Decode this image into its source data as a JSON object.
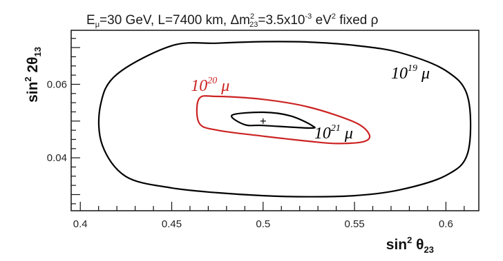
{
  "chart_data": {
    "type": "line",
    "title": {
      "e_main": "E",
      "e_sub": "μ",
      "part1": "=30 GeV, L=7400 km, Δm",
      "dm_sup": "2",
      "dm_sub": "23",
      "part2": "=3.5x10",
      "exp": "-3",
      "part3": " eV",
      "ev_sup": "2",
      "part4": " fixed ρ"
    },
    "xlabel": {
      "main": "sin",
      "sup": "2",
      "theta": " θ",
      "sub": "23"
    },
    "ylabel": {
      "main": "sin",
      "sup": "2",
      "theta": " 2θ",
      "sub": "13"
    },
    "xlim": [
      0.395,
      0.618
    ],
    "ylim": [
      0.0256,
      0.0747
    ],
    "x_ticks": [
      0.4,
      0.45,
      0.5,
      0.55,
      0.6
    ],
    "x_tick_labels": [
      "0.4",
      "0.45",
      "0.5",
      "0.55",
      "0.6"
    ],
    "y_ticks": [
      0.04,
      0.06
    ],
    "y_tick_labels": [
      "0.04",
      "0.06"
    ],
    "grid": false,
    "best_fit": {
      "x": 0.5,
      "y": 0.05
    },
    "series": [
      {
        "color": "#000000",
        "x": [
          0.45,
          0.475,
          0.5,
          0.525,
          0.55,
          0.575,
          0.6,
          0.612,
          0.612,
          0.6,
          0.575,
          0.55,
          0.525,
          0.5,
          0.475,
          0.45,
          0.425,
          0.412,
          0.411,
          0.42,
          0.45
        ],
        "y": [
          0.0705,
          0.0712,
          0.0716,
          0.0715,
          0.0706,
          0.0686,
          0.0637,
          0.0565,
          0.0414,
          0.0352,
          0.0313,
          0.0297,
          0.0294,
          0.0297,
          0.0305,
          0.0318,
          0.0349,
          0.0435,
          0.0542,
          0.0627,
          0.0705
        ]
      },
      {
        "color": "#cc2222",
        "x": [
          0.465,
          0.475,
          0.5,
          0.525,
          0.55,
          0.558,
          0.555,
          0.54,
          0.525,
          0.5,
          0.475,
          0.465,
          0.465
        ],
        "y": [
          0.0561,
          0.0567,
          0.0559,
          0.0538,
          0.0497,
          0.0464,
          0.0444,
          0.0439,
          0.0445,
          0.0459,
          0.0475,
          0.0495,
          0.0561
        ]
      },
      {
        "color": "#000000",
        "x": [
          0.483,
          0.5,
          0.515,
          0.527,
          0.525,
          0.5,
          0.49,
          0.483
        ],
        "y": [
          0.0516,
          0.0524,
          0.0514,
          0.0487,
          0.0481,
          0.0488,
          0.049,
          0.0516
        ]
      }
    ],
    "annotations": [
      {
        "base": "10",
        "exp": "19",
        "unit": "μ",
        "color": "#000000",
        "x": 0.57,
        "y": 0.0616
      },
      {
        "base": "10",
        "exp": "20",
        "unit": "μ",
        "color": "#cc2222",
        "x": 0.4605,
        "y": 0.0582
      },
      {
        "base": "10",
        "exp": "21",
        "unit": "μ",
        "color": "#000000",
        "x": 0.528,
        "y": 0.0453
      }
    ]
  }
}
